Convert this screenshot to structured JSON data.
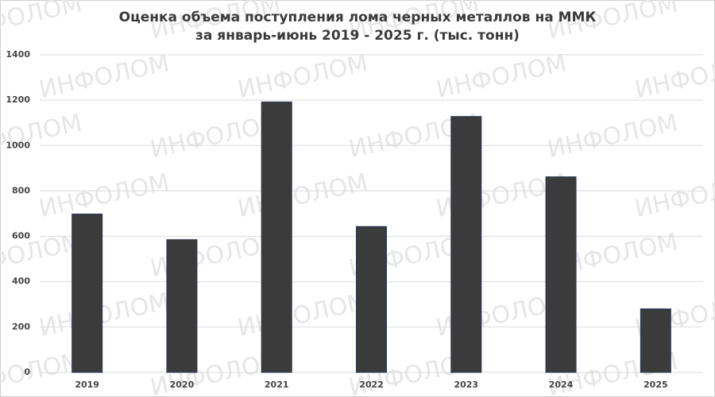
{
  "chart_data": {
    "type": "bar",
    "title": "Оценка объема поступления лома черных металлов на ММК",
    "subtitle": "за январь-июнь 2019 - 2025 г. (тыс. тонн)",
    "watermark": "ИНФОЛОМ",
    "categories": [
      "2019",
      "2020",
      "2021",
      "2022",
      "2023",
      "2024",
      "2025"
    ],
    "values": [
      698,
      585,
      1192,
      643,
      1128,
      862,
      280
    ],
    "color": "#3b3b3b",
    "ylim": [
      0,
      1400
    ],
    "yticks": [
      0,
      200,
      400,
      600,
      800,
      1000,
      1200,
      1400
    ],
    "grid": true
  }
}
